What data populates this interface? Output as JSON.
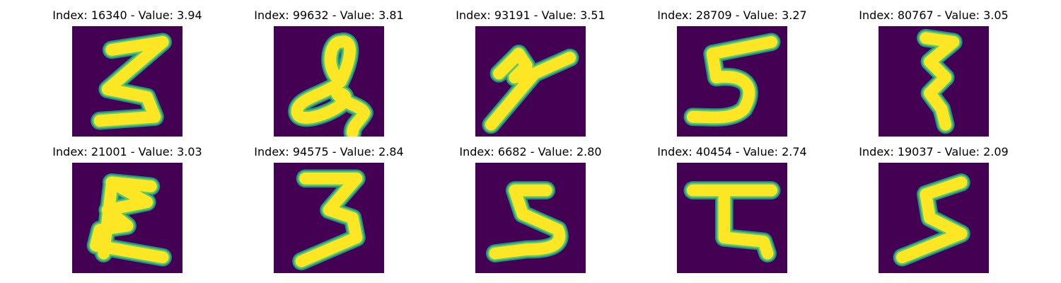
{
  "colors": {
    "background": "#440154",
    "stroke_outer": "#21918c",
    "stroke_mid": "#5ec962",
    "stroke_core": "#fde725"
  },
  "panels": [
    {
      "title": "Index: 16340 - Value: 3.94"
    },
    {
      "title": "Index: 99632 - Value: 3.81"
    },
    {
      "title": "Index: 93191 - Value: 3.51"
    },
    {
      "title": "Index: 28709 - Value: 3.27"
    },
    {
      "title": "Index: 80767 - Value: 3.05"
    },
    {
      "title": "Index: 21001 - Value: 3.03"
    },
    {
      "title": "Index: 94575 - Value: 2.84"
    },
    {
      "title": "Index: 6682 - Value: 2.80"
    },
    {
      "title": "Index: 40454 - Value: 2.74"
    },
    {
      "title": "Index: 19037 - Value: 2.09"
    }
  ]
}
